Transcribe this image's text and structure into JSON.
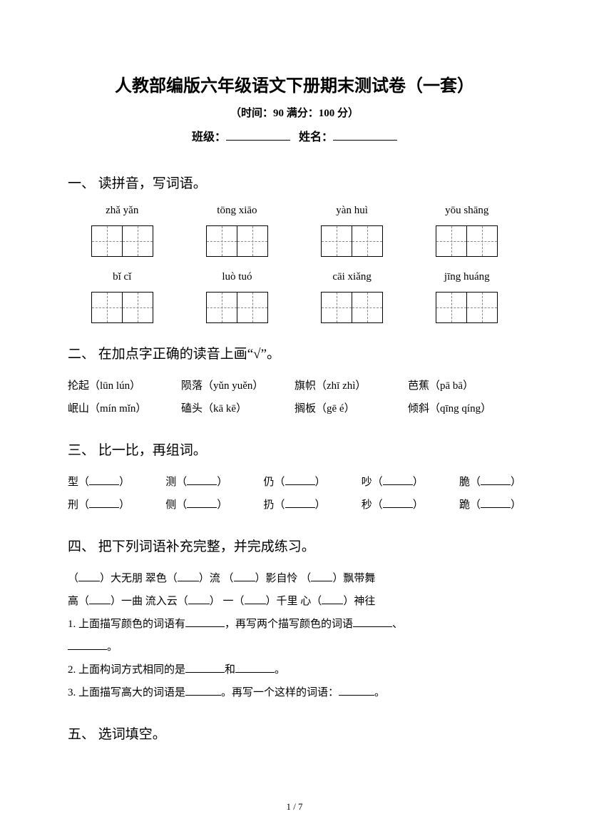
{
  "title": "人教部编版六年级语文下册期末测试卷（一套）",
  "subtitle": "（时间：90   满分：100 分）",
  "info": {
    "class_label": "班级：",
    "name_label": "姓名："
  },
  "q1": {
    "head": "一、 读拼音，写词语。",
    "row1": [
      "zhǎ yǎn",
      "tōng xiāo",
      "yàn huì",
      "yōu shāng"
    ],
    "row2": [
      "bǐ cǐ",
      "luò tuó",
      "cāi xiǎng",
      "jīng huáng"
    ]
  },
  "q2": {
    "head": "二、 在加点字正确的读音上画“√”。",
    "rows": [
      [
        "抡起（lūn lún）",
        "陨落（yǔn yuěn）",
        "旗帜（zhī zhì）",
        "芭蕉（pā bā）"
      ],
      [
        "岷山（mín mǐn）",
        "磕头（kā kē）",
        "搁板（gē é）",
        "倾斜（qīng qíng）"
      ]
    ]
  },
  "q3": {
    "head": "三、 比一比，再组词。",
    "pairs": [
      [
        "型",
        "测",
        "仍",
        "吵",
        "脆"
      ],
      [
        "刑",
        "侧",
        "扔",
        "秒",
        "跪"
      ]
    ]
  },
  "q4": {
    "head": "四、 把下列词语补充完整，并完成练习。",
    "line1": [
      {
        "pre": "（",
        "post": "）大无朋   翠色（",
        "post2": "）流   （",
        "post3": "）影自怜   （",
        "post4": "）飘带舞"
      }
    ],
    "line2_text": [
      "高（",
      "）一曲   流入云（",
      "）  一（",
      "）千里   心（",
      "）神往"
    ],
    "sub1": "1. 上面描写颜色的词语有",
    "sub1_mid": "，再写两个描写颜色的词语",
    "sub1_end": "、",
    "sub1_end2": "。",
    "sub2_a": "2. 上面构词方式相同的是",
    "sub2_b": "和",
    "sub2_c": "。",
    "sub3_a": "3. 上面描写高大的词语是",
    "sub3_b": "。再写一个这样的词语：",
    "sub3_c": "。"
  },
  "q5": {
    "head": "五、 选词填空。"
  },
  "pager": "1 / 7"
}
